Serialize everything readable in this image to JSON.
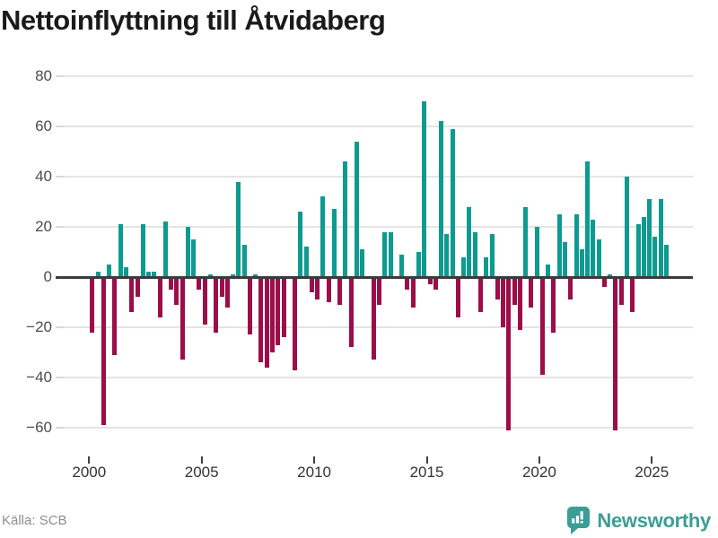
{
  "title": "Nettoinflyttning till Åtvidaberg",
  "source": "Källa: SCB",
  "logo": {
    "text": "Newsworthy",
    "icon": "newsworthy-bars-icon",
    "color": "#3b9e95"
  },
  "chart_data": {
    "type": "bar",
    "title": "Nettoinflyttning till Åtvidaberg",
    "frequency": "quarterly",
    "start_year": 2000,
    "start_quarter": 1,
    "values": [
      -22,
      2,
      -59,
      5,
      -31,
      21,
      4,
      -14,
      -8,
      21,
      2,
      2,
      -16,
      22,
      -5,
      -11,
      -33,
      20,
      15,
      -5,
      -19,
      1,
      -22,
      -8,
      -12,
      1,
      38,
      13,
      -23,
      1,
      -34,
      -36,
      -30,
      -27,
      -24,
      0,
      -37,
      26,
      12,
      -6,
      -9,
      32,
      -10,
      27,
      -11,
      46,
      -28,
      54,
      11,
      0,
      -33,
      -11,
      18,
      18,
      0,
      9,
      -5,
      -12,
      10,
      70,
      -3,
      -5,
      62,
      17,
      59,
      -16,
      8,
      28,
      18,
      -14,
      8,
      17,
      -9,
      -20,
      -61,
      -11,
      -21,
      28,
      -12,
      20,
      -39,
      5,
      -22,
      25,
      14,
      -9,
      25,
      11,
      46,
      23,
      15,
      -4,
      1,
      -61,
      -11,
      40,
      -14,
      21,
      24,
      31,
      16,
      31,
      13
    ],
    "x_tick_years": [
      2000,
      2005,
      2010,
      2015,
      2020,
      2025
    ],
    "y_tick_values": [
      80,
      60,
      40,
      20,
      0,
      -20,
      -40,
      -60
    ],
    "y_tick_labels": [
      "80",
      "60",
      "40",
      "20",
      "0",
      "−20",
      "−40",
      "−60"
    ],
    "ylim": [
      -63,
      80
    ],
    "grid": true,
    "legend": "none",
    "colors": {
      "positive": "#0d9a90",
      "negative": "#9c0d49"
    }
  }
}
